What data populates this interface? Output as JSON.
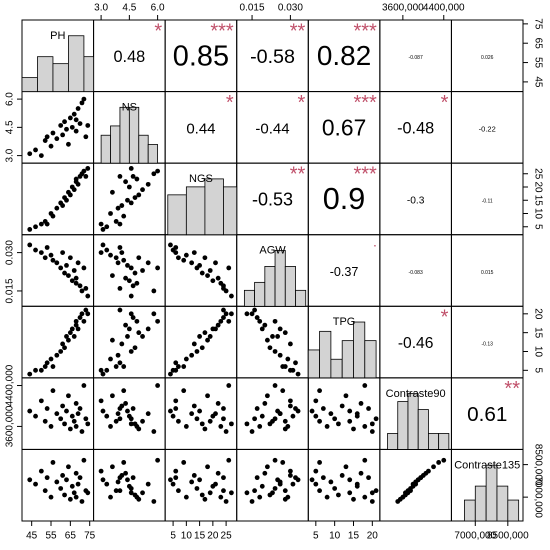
{
  "chart_data": {
    "type": "correlation_matrix",
    "variables": [
      {
        "name": "PH",
        "lim": [
          40,
          77
        ],
        "ticks": [
          45,
          55,
          65,
          75
        ],
        "values": [
          44,
          47,
          50,
          52,
          53,
          55,
          56,
          58,
          60,
          61,
          62,
          63,
          64,
          65,
          66,
          67,
          68,
          68,
          69,
          70,
          71,
          72,
          73,
          74
        ],
        "hist": {
          "bins": [
            40,
            48,
            56,
            64,
            72,
            77
          ],
          "counts": [
            2,
            5,
            4,
            8,
            5
          ]
        }
      },
      {
        "name": "NS",
        "lim": [
          2.6,
          6.4
        ],
        "ticks": [
          {
            "value": 3,
            "label": "3.0"
          },
          4.5,
          {
            "value": 6,
            "label": "6.0"
          }
        ],
        "values": [
          3.1,
          3.3,
          3.0,
          3.8,
          4.0,
          3.5,
          4.2,
          3.9,
          4.6,
          4.1,
          4.8,
          4.4,
          3.6,
          5.0,
          4.5,
          5.2,
          4.3,
          4.9,
          5.5,
          4.7,
          5.8,
          6.0,
          4.0,
          4.6
        ],
        "hist": {
          "bins": [
            3.0,
            3.5,
            4.0,
            4.5,
            5.0,
            5.5,
            6.0
          ],
          "counts": [
            3,
            4,
            6,
            6,
            3,
            2
          ]
        }
      },
      {
        "name": "NGS",
        "lim": [
          2,
          29
        ],
        "ticks": [
          5,
          10,
          15,
          20,
          25
        ],
        "values": [
          4,
          5,
          6,
          7,
          6,
          10,
          9,
          12,
          14,
          13,
          16,
          15,
          18,
          17,
          20,
          19,
          22,
          23,
          21,
          24,
          25,
          26,
          24,
          27
        ],
        "hist": {
          "bins": [
            3,
            10,
            17,
            24,
            29
          ],
          "counts": [
            5,
            6,
            7,
            6
          ]
        }
      },
      {
        "name": "AGW",
        "lim": [
          0.009,
          0.037
        ],
        "ticks": [
          0.015,
          {
            "value": 0.03,
            "label": "0.030"
          }
        ],
        "values": [
          0.033,
          0.031,
          0.03,
          0.028,
          0.032,
          0.029,
          0.027,
          0.026,
          0.024,
          0.03,
          0.022,
          0.025,
          0.021,
          0.028,
          0.019,
          0.023,
          0.02,
          0.018,
          0.026,
          0.017,
          0.015,
          0.024,
          0.016,
          0.013
        ],
        "hist": {
          "bins": [
            0.012,
            0.016,
            0.02,
            0.024,
            0.028,
            0.032,
            0.036
          ],
          "counts": [
            2,
            3,
            5,
            7,
            5,
            2
          ]
        }
      },
      {
        "name": "TPG",
        "lim": [
          3,
          22
        ],
        "ticks": [
          5,
          10,
          15,
          20
        ],
        "values": [
          4,
          5,
          5,
          6,
          7,
          8,
          6,
          9,
          10,
          12,
          11,
          14,
          13,
          15,
          16,
          14,
          17,
          18,
          16,
          19,
          20,
          18,
          21,
          20
        ],
        "hist": {
          "bins": [
            3,
            6,
            9,
            12,
            15,
            18,
            21
          ],
          "counts": [
            3,
            5,
            2,
            4,
            6,
            4
          ]
        }
      },
      {
        "name": "Contraste90",
        "lim": [
          3150000,
          4550000
        ],
        "ticks": [
          {
            "value": 3600000,
            "label": "3600,000"
          },
          {
            "value": 4400000,
            "label": "4400,000"
          }
        ],
        "values": [
          3900000,
          3800000,
          4100000,
          3700000,
          3950000,
          3600000,
          4300000,
          3850000,
          3750000,
          4000000,
          3650000,
          3900000,
          4200000,
          3550000,
          3800000,
          3700000,
          4050000,
          3600000,
          3850000,
          3950000,
          3500000,
          4400000,
          3750000,
          3650000
        ],
        "hist": {
          "bins": [
            3300000,
            3500000,
            3700000,
            3900000,
            4100000,
            4300000,
            4500000
          ],
          "counts": [
            2,
            6,
            7,
            5,
            2,
            2
          ]
        }
      },
      {
        "name": "Contraste135",
        "lim": [
          5900000,
          9200000
        ],
        "ticks": [
          {
            "value": 7000000,
            "label": "7000,000"
          },
          {
            "value": 8500000,
            "label": "8500,000"
          }
        ],
        "values": [
          7800000,
          7600000,
          8200000,
          7300000,
          7900000,
          7000000,
          8600000,
          7700000,
          7400000,
          8000000,
          7100000,
          7800000,
          8400000,
          6900000,
          7500000,
          7200000,
          8100000,
          7000000,
          7600000,
          7900000,
          6800000,
          8700000,
          7300000,
          7200000
        ],
        "hist": {
          "bins": [
            6500000,
            7000000,
            7500000,
            8000000,
            8500000,
            9000000
          ],
          "counts": [
            3,
            5,
            8,
            5,
            3
          ]
        }
      }
    ],
    "correlations": [
      [
        0.48,
        0.85,
        -0.58,
        0.82,
        -0.087,
        0.026
      ],
      [
        0.44,
        -0.44,
        0.67,
        -0.48,
        -0.22
      ],
      [
        -0.53,
        0.9,
        -0.3,
        -0.11
      ],
      [
        -0.37,
        -0.083,
        0.015
      ],
      [
        -0.46,
        -0.13
      ],
      [
        0.61
      ]
    ],
    "significance": [
      [
        "*",
        "***",
        "**",
        "***",
        null,
        null
      ],
      [
        "*",
        "*",
        "***",
        "*",
        null
      ],
      [
        "**",
        "***",
        null,
        null
      ],
      [
        ".",
        null,
        null
      ],
      [
        "*",
        null
      ],
      [
        "**"
      ]
    ],
    "point_color": "#000000",
    "hist_color": "#d3d3d3",
    "star_color": "#c0506a"
  }
}
